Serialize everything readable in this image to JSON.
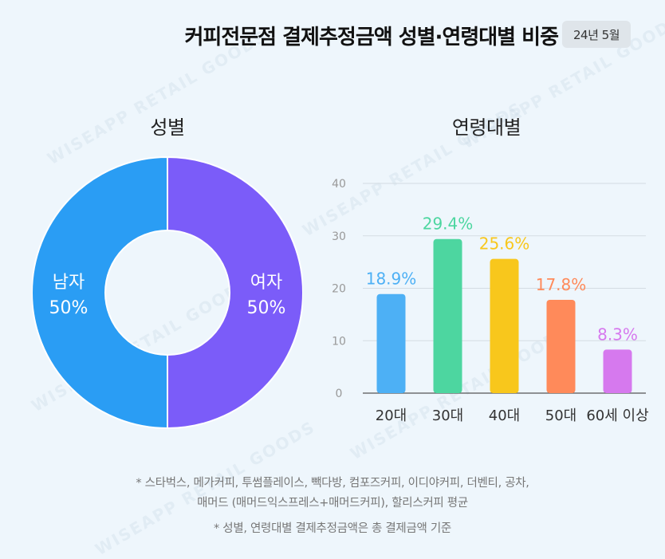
{
  "header": {
    "title": "커피전문점 결제추정금액 성별·연령대별 비중",
    "date": "24년 5월"
  },
  "watermark": "WISEAPP RETAIL GOODS",
  "chart_data": [
    {
      "type": "pie",
      "title": "성별",
      "categories": [
        "남자",
        "여자"
      ],
      "values": [
        50,
        50
      ],
      "value_labels": [
        "50%",
        "50%"
      ],
      "colors": [
        "#2a9df4",
        "#7b5cf9"
      ],
      "donut": true
    },
    {
      "type": "bar",
      "title": "연령대별",
      "categories": [
        "20대",
        "30대",
        "40대",
        "50대",
        "60세 이상"
      ],
      "values": [
        18.9,
        29.4,
        25.6,
        17.8,
        8.3
      ],
      "value_labels": [
        "18.9%",
        "29.4%",
        "25.6%",
        "17.8%",
        "8.3%"
      ],
      "colors": [
        "#4db0f5",
        "#4dd6a0",
        "#f8c71c",
        "#ff8a5a",
        "#d679ee"
      ],
      "yticks": [
        "0",
        "10",
        "20",
        "30",
        "40"
      ],
      "ylim": [
        0,
        40
      ],
      "grid": true
    }
  ],
  "footnotes": [
    "* 스타벅스, 메가커피, 투썸플레이스, 빽다방, 컴포즈커피, 이디야커피, 더벤티, 공차,",
    "매머드 (매머드익스프레스+매머드커피), 할리스커피 평균",
    "* 성별, 연령대별 결제추정금액은 총 결제금액 기준"
  ]
}
